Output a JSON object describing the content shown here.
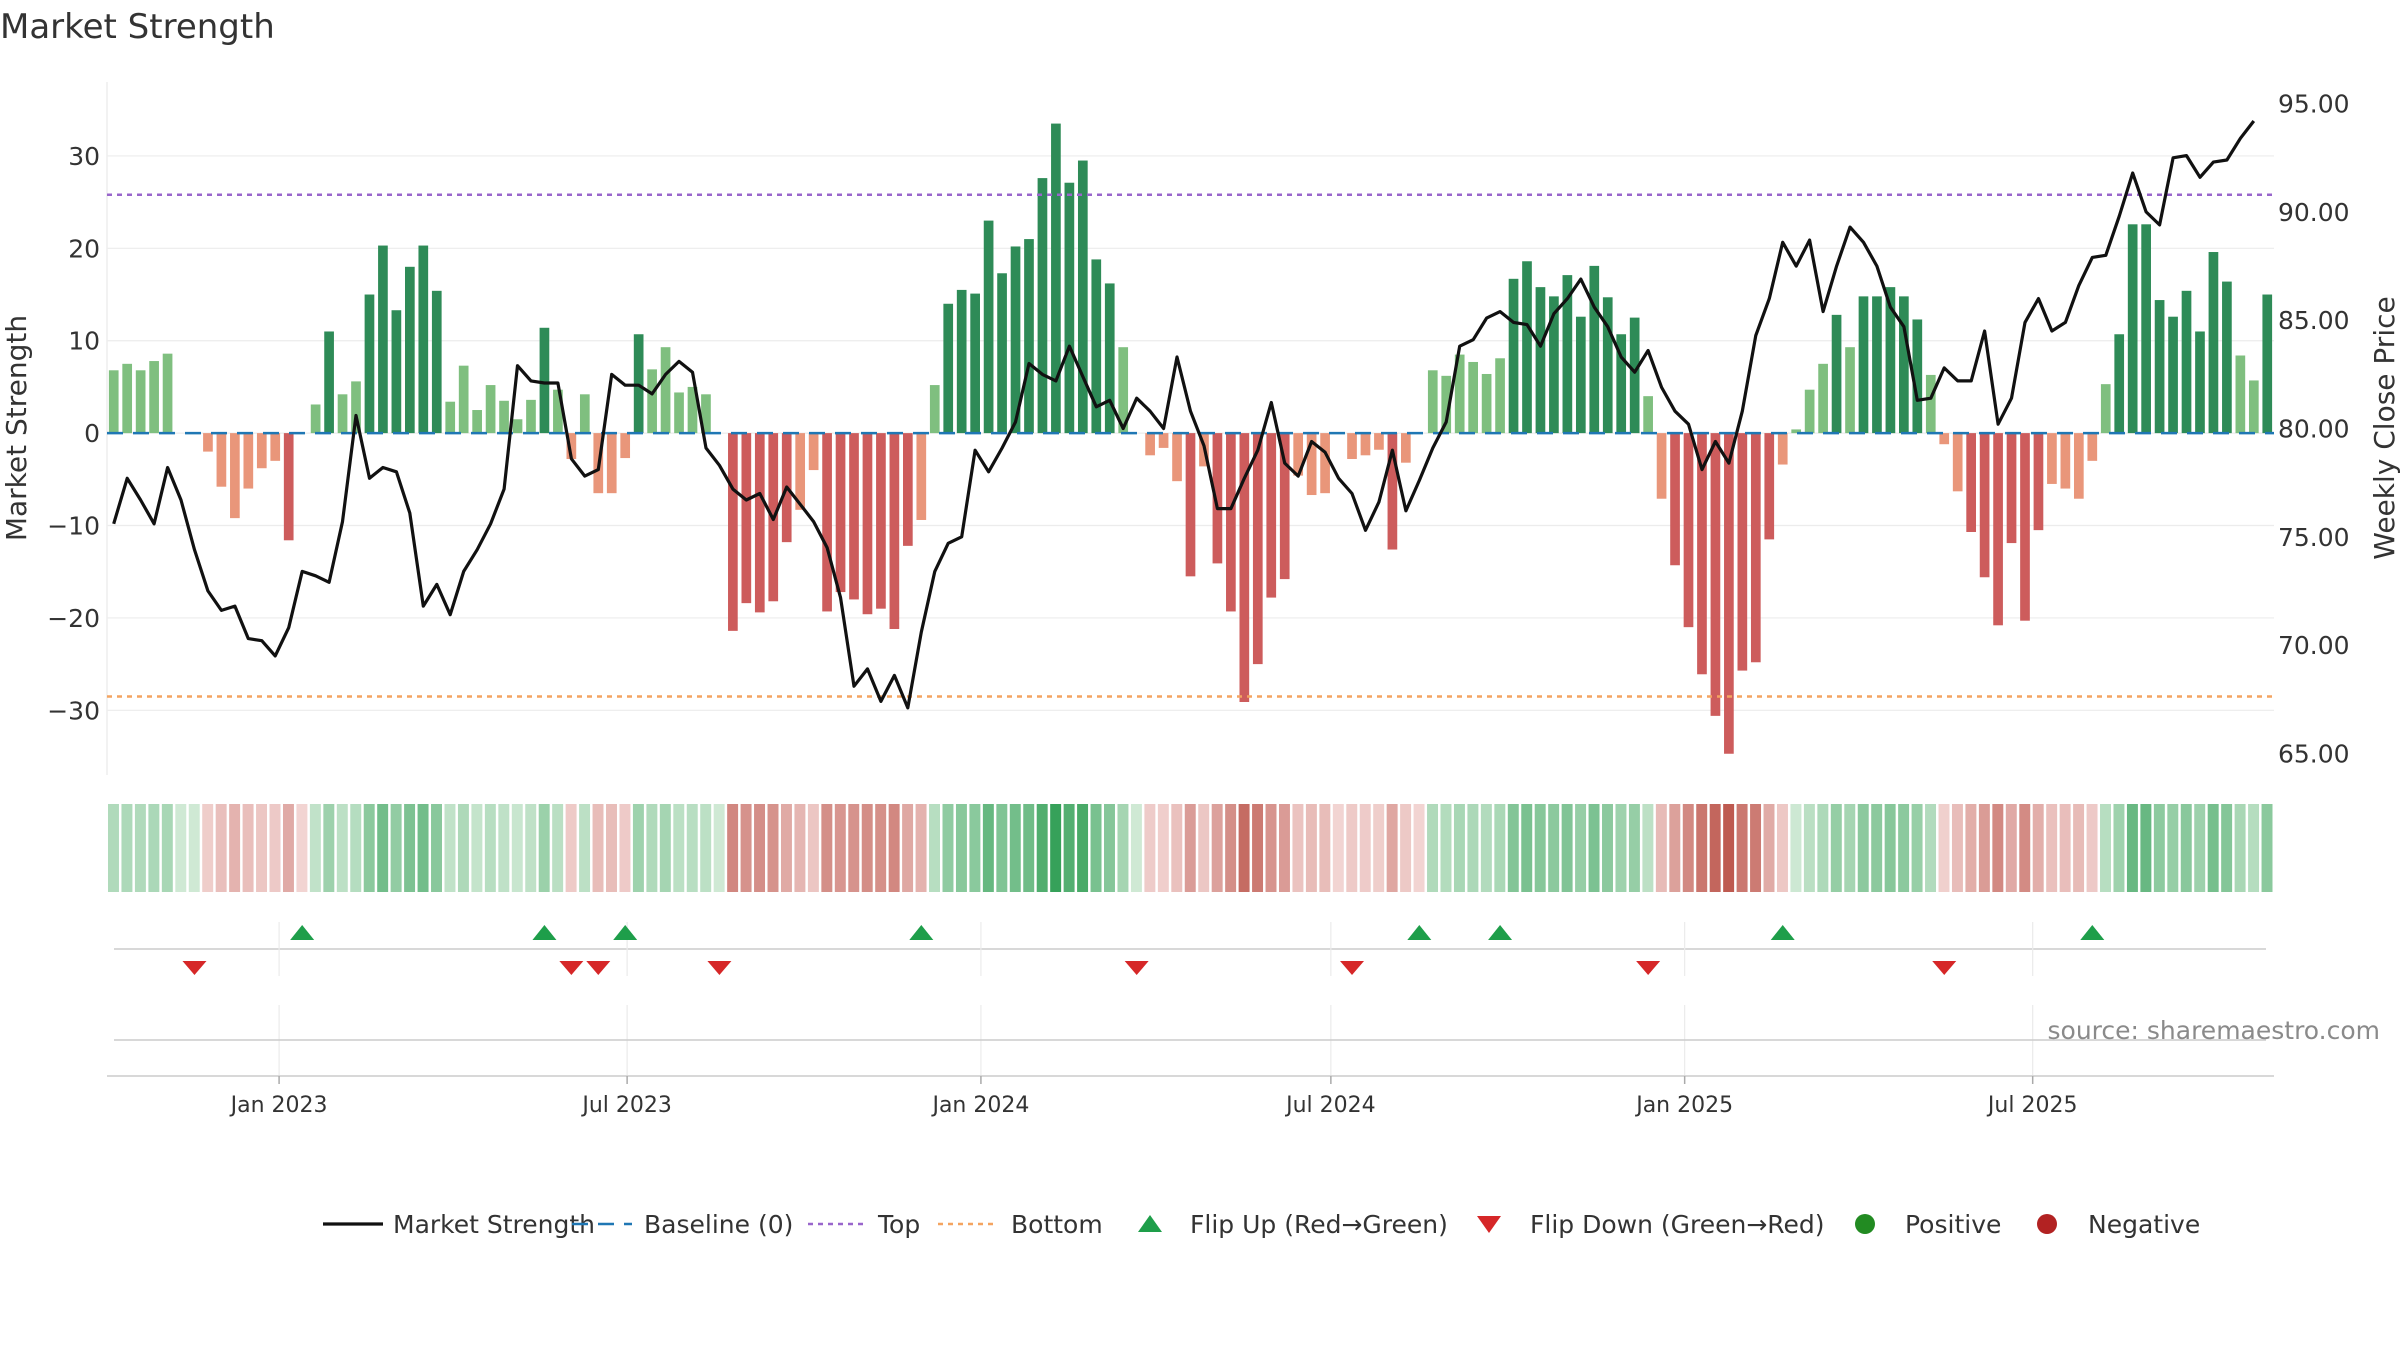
{
  "chart_data": {
    "type": "bar",
    "title": "Market Strength",
    "ylabel": "Market Strength",
    "y2label": "Weekly Close Price",
    "ylim": [
      -37,
      38
    ],
    "y2lim": [
      64.0,
      96.0
    ],
    "yticks": [
      30,
      20,
      10,
      0,
      -10,
      -20,
      -30
    ],
    "y2ticks": [
      "95.00",
      "90.00",
      "85.00",
      "80.00",
      "75.00",
      "70.00",
      "65.00"
    ],
    "top_level": 25.8,
    "bottom_level": -28.5,
    "x_start": "2022-10-07",
    "week_days": 7,
    "xticks": [
      {
        "label": "Jan 2023",
        "date": "2023-01-01"
      },
      {
        "label": "Jul 2023",
        "date": "2023-07-01"
      },
      {
        "label": "Jan 2024",
        "date": "2024-01-01"
      },
      {
        "label": "Jul 2024",
        "date": "2024-07-01"
      },
      {
        "label": "Jan 2025",
        "date": "2025-01-01"
      },
      {
        "label": "Jul 2025",
        "date": "2025-07-01"
      }
    ],
    "series": [
      {
        "name": "Market Strength",
        "values": [
          6.8,
          7.5,
          6.8,
          7.8,
          8.6,
          0,
          0,
          -2,
          -5.8,
          -9.2,
          -6,
          -3.8,
          -3,
          -11.6,
          0,
          3.1,
          11,
          4.2,
          5.6,
          15,
          20.3,
          13.3,
          18,
          20.3,
          15.4,
          3.4,
          7.3,
          2.5,
          5.2,
          3.5,
          1.5,
          3.6,
          11.4,
          4.7,
          -2.8,
          4.2,
          -6.5,
          -6.5,
          -2.7,
          10.7,
          6.9,
          9.3,
          4.4,
          5,
          4.2,
          0,
          -21.4,
          -18.4,
          -19.4,
          -18.2,
          -11.8,
          -8.3,
          -4,
          -19.3,
          -17.2,
          -18,
          -19.6,
          -19,
          -21.2,
          -12.2,
          -9.4,
          5.2,
          14,
          15.5,
          15.1,
          23,
          17.3,
          20.2,
          21,
          27.6,
          33.5,
          27.1,
          29.5,
          18.8,
          16.2,
          9.3,
          0,
          -2.4,
          -1.6,
          -5.2,
          -15.5,
          -3.6,
          -14.1,
          -19.3,
          -29.1,
          -25,
          -17.8,
          -15.8,
          -4.6,
          -6.7,
          -6.5,
          0,
          -2.8,
          -2.4,
          -1.8,
          -12.6,
          -3.2,
          0,
          6.8,
          6.2,
          8.5,
          7.7,
          6.4,
          8.1,
          16.7,
          18.6,
          15.8,
          14.8,
          17.1,
          12.6,
          18.1,
          14.7,
          10.7,
          12.5,
          4,
          -7.1,
          -14.3,
          -21,
          -26.1,
          -30.6,
          -34.7,
          -25.7,
          -24.8,
          -11.5,
          -3.4,
          0.4,
          4.7,
          7.5,
          12.8,
          9.3,
          14.8,
          14.8,
          15.8,
          14.8,
          12.3,
          6.3,
          -1.2,
          -6.3,
          -10.7,
          -15.6,
          -20.8,
          -11.9,
          -20.3,
          -10.5,
          -5.5,
          -6,
          -7.1,
          -3,
          5.3,
          10.7,
          22.6,
          22.6,
          14.4,
          12.6,
          15.4,
          11,
          19.6,
          16.4,
          8.4,
          5.7,
          15
        ]
      },
      {
        "name": "Weekly Close",
        "values": [
          75.6,
          77.7,
          76.7,
          75.6,
          78.2,
          76.7,
          74.4,
          72.5,
          71.6,
          71.8,
          70.3,
          70.2,
          69.5,
          70.8,
          73.4,
          73.2,
          72.9,
          75.7,
          80.6,
          77.7,
          78.2,
          78.0,
          76.1,
          71.8,
          72.8,
          71.4,
          73.4,
          74.4,
          75.6,
          77.2,
          82.9,
          82.2,
          82.1,
          82.1,
          78.6,
          77.8,
          78.1,
          82.5,
          82.0,
          82.0,
          81.6,
          82.5,
          83.1,
          82.6,
          79.1,
          78.3,
          77.2,
          76.7,
          77.0,
          75.8,
          77.3,
          76.5,
          75.7,
          74.5,
          72.2,
          68.1,
          68.9,
          67.4,
          68.6,
          67.1,
          70.6,
          73.4,
          74.7,
          75.0,
          79.0,
          78.0,
          79.1,
          80.3,
          83.0,
          82.5,
          82.2,
          83.8,
          82.4,
          81.0,
          81.3,
          80.0,
          81.4,
          80.8,
          80.0,
          83.3,
          80.8,
          79.2,
          76.3,
          76.3,
          77.7,
          79.0,
          81.2,
          78.4,
          77.8,
          79.4,
          78.9,
          77.7,
          77.0,
          75.3,
          76.6,
          79.0,
          76.2,
          77.6,
          79.1,
          80.3,
          83.8,
          84.1,
          85.1,
          85.4,
          84.9,
          84.8,
          83.8,
          85.3,
          86.0,
          86.9,
          85.6,
          84.7,
          83.3,
          82.6,
          83.6,
          81.9,
          80.8,
          80.2,
          78.1,
          79.4,
          78.4,
          80.8,
          84.3,
          86.0,
          88.6,
          87.5,
          88.7,
          85.4,
          87.5,
          89.3,
          88.6,
          87.5,
          85.6,
          84.7,
          81.3,
          81.4,
          82.8,
          82.2,
          82.2,
          84.5,
          80.2,
          81.4,
          84.9,
          86.0,
          84.5,
          84.9,
          86.6,
          87.9,
          88.0,
          89.8,
          91.8,
          90.0,
          89.4,
          92.5,
          92.6,
          91.6,
          92.3,
          92.4,
          93.4,
          94.2
        ]
      },
      {
        "name": "Baseline (0)"
      },
      {
        "name": "Top"
      },
      {
        "name": "Bottom"
      },
      {
        "name": "Flip Up (Red→Green)",
        "weeks": [
          14,
          32,
          38,
          60,
          97,
          103,
          124,
          147
        ]
      },
      {
        "name": "Flip Down (Green→Red)",
        "weeks": [
          6,
          34,
          36,
          45,
          76,
          92,
          114,
          136
        ]
      },
      {
        "name": "Positive"
      },
      {
        "name": "Negative"
      }
    ],
    "colors": {
      "pos_dark": "#2e8b57",
      "pos_light": "#7fbf7f",
      "neg_dark": "#cd5c5c",
      "neg_light": "#e9967a",
      "top": "#9966cc",
      "bottom": "#f4a460",
      "baseline": "#1f77b4",
      "line": "#111111",
      "flip_up": "#1e9e4a",
      "flip_down": "#d62728",
      "positive_dot": "#228b22",
      "negative_dot": "#b22222"
    },
    "source": "source: sharemaestro.com"
  }
}
